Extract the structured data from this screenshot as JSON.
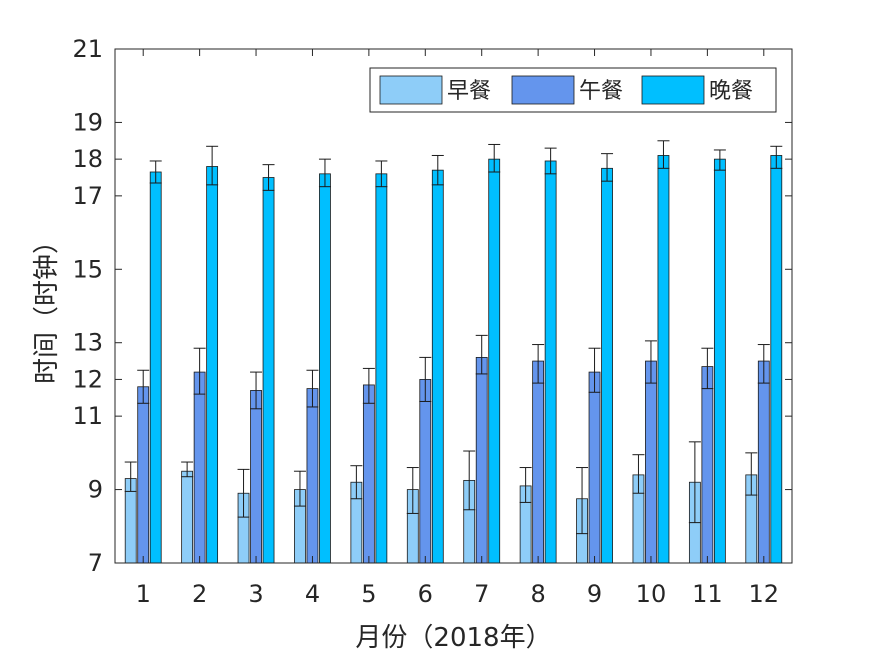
{
  "chart_data": {
    "type": "bar",
    "xlabel": "月份（2018年）",
    "ylabel": "时间（时钟）",
    "ylim": [
      7,
      21
    ],
    "yticks": [
      7,
      9,
      11,
      12,
      13,
      15,
      17,
      18,
      19,
      21
    ],
    "categories": [
      "1",
      "2",
      "3",
      "4",
      "5",
      "6",
      "7",
      "8",
      "9",
      "10",
      "11",
      "12"
    ],
    "legend_position": "top-right",
    "grid": false,
    "error_bars": true,
    "series": [
      {
        "name": "早餐",
        "color": "#8ecdf8",
        "values": [
          9.3,
          9.5,
          8.9,
          9.0,
          9.2,
          9.0,
          9.25,
          9.1,
          8.75,
          9.4,
          9.2,
          9.4
        ],
        "err_low": [
          8.95,
          9.35,
          8.25,
          8.55,
          8.75,
          8.35,
          8.45,
          8.65,
          7.8,
          8.9,
          8.1,
          8.85
        ],
        "err_high": [
          9.75,
          9.75,
          9.55,
          9.5,
          9.65,
          9.6,
          10.05,
          9.6,
          9.6,
          9.95,
          10.3,
          10.0
        ]
      },
      {
        "name": "午餐",
        "color": "#6495ed",
        "values": [
          11.8,
          12.2,
          11.7,
          11.75,
          11.85,
          12.0,
          12.6,
          12.5,
          12.2,
          12.5,
          12.35,
          12.5
        ],
        "err_low": [
          11.35,
          11.6,
          11.2,
          11.25,
          11.35,
          11.4,
          12.15,
          11.9,
          11.65,
          11.9,
          11.75,
          11.9
        ],
        "err_high": [
          12.25,
          12.85,
          12.2,
          12.25,
          12.3,
          12.6,
          13.2,
          12.95,
          12.85,
          13.05,
          12.85,
          12.95
        ]
      },
      {
        "name": "晚餐",
        "color": "#00bfff",
        "values": [
          17.65,
          17.8,
          17.5,
          17.6,
          17.6,
          17.7,
          18.0,
          17.95,
          17.75,
          18.1,
          18.0,
          18.1
        ],
        "err_low": [
          17.35,
          17.3,
          17.15,
          17.25,
          17.25,
          17.3,
          17.65,
          17.6,
          17.4,
          17.75,
          17.7,
          17.75
        ],
        "err_high": [
          17.95,
          18.35,
          17.85,
          18.0,
          17.95,
          18.1,
          18.4,
          18.3,
          18.15,
          18.5,
          18.25,
          18.35
        ]
      }
    ]
  }
}
